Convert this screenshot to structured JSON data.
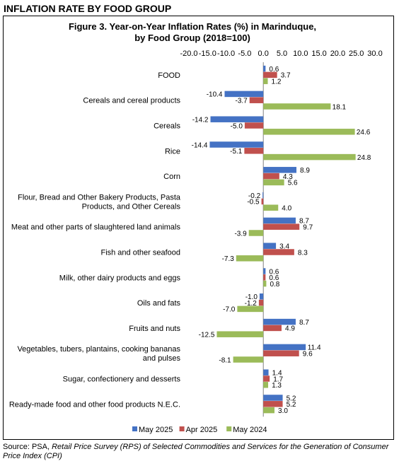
{
  "section_title": "INFLATION RATE BY FOOD GROUP",
  "source": {
    "prefix": "Source: PSA, ",
    "italic": "Retail Price Survey (RPS) of Selected Commodities and Services for the Generation of Consumer Price Index (CPI)"
  },
  "chart_data": {
    "type": "bar",
    "orientation": "horizontal",
    "title_line1": "Figure 3. Year-on-Year Inflation Rates (%) in Marinduque,",
    "title_line2": "by Food Group (2018=100)",
    "xlim": [
      -20,
      30
    ],
    "ticks": [
      "-20.0",
      "-15.0",
      "-10.0",
      "-5.0",
      "0.0",
      "5.0",
      "10.0",
      "15.0",
      "20.0",
      "25.0",
      "30.0"
    ],
    "tick_values": [
      -20,
      -15,
      -10,
      -5,
      0,
      5,
      10,
      15,
      20,
      25,
      30
    ],
    "axis_position": "top",
    "legend_position": "bottom",
    "categories": [
      [
        "FOOD"
      ],
      [
        "Cereals and cereal products"
      ],
      [
        "Cereals"
      ],
      [
        "Rice"
      ],
      [
        "Corn"
      ],
      [
        "Flour, Bread and Other Bakery Products, Pasta",
        "Products,  and Other Cereals"
      ],
      [
        "Meat and other parts of slaughtered land animals"
      ],
      [
        "Fish and other seafood"
      ],
      [
        "Milk, other dairy products and eggs"
      ],
      [
        "Oils and fats"
      ],
      [
        "Fruits and nuts"
      ],
      [
        "Vegetables, tubers, plantains, cooking bananas",
        "and pulses"
      ],
      [
        "Sugar, confectionery and desserts"
      ],
      [
        "Ready-made food and other food products N.E.C."
      ]
    ],
    "series": [
      {
        "name": "May 2025",
        "color": "#4472C4",
        "values": [
          0.6,
          -10.4,
          -14.2,
          -14.4,
          8.9,
          -0.2,
          8.7,
          3.4,
          0.6,
          -1.0,
          8.7,
          11.4,
          1.4,
          5.2
        ]
      },
      {
        "name": "Apr 2025",
        "color": "#C0504D",
        "values": [
          3.7,
          -3.7,
          -5.0,
          -5.1,
          4.3,
          -0.5,
          9.7,
          8.3,
          0.6,
          -1.2,
          4.9,
          9.6,
          1.7,
          5.2
        ]
      },
      {
        "name": "May 2024",
        "color": "#9BBB59",
        "values": [
          1.2,
          18.1,
          24.6,
          24.8,
          5.6,
          4.0,
          -3.9,
          -7.3,
          0.8,
          -7.0,
          -12.5,
          -8.1,
          1.3,
          3.0
        ]
      }
    ]
  }
}
